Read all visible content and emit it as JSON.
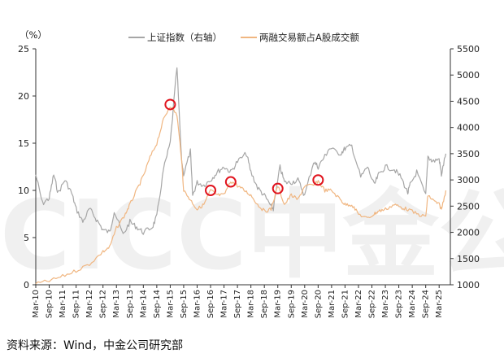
{
  "chart_data": {
    "type": "line",
    "title": "",
    "left_axis": {
      "unit_label": "（%）",
      "range": [
        0,
        25
      ],
      "ticks": [
        0,
        5,
        10,
        15,
        20,
        25
      ]
    },
    "right_axis": {
      "range": [
        1000,
        5500
      ],
      "ticks": [
        1000,
        1500,
        2000,
        2500,
        3000,
        3500,
        4000,
        4500,
        5000,
        5500
      ]
    },
    "x_tick_labels": [
      "Mar-10",
      "Sep-10",
      "Mar-11",
      "Sep-11",
      "Mar-12",
      "Sep-12",
      "Mar-13",
      "Sep-13",
      "Mar-14",
      "Sep-14",
      "Mar-15",
      "Sep-15",
      "Mar-16",
      "Sep-16",
      "Mar-17",
      "Sep-17",
      "Mar-18",
      "Sep-18",
      "Mar-19",
      "Sep-19",
      "Mar-20",
      "Sep-20",
      "Mar-21",
      "Sep-21",
      "Mar-22",
      "Sep-22",
      "Mar-23",
      "Sep-23",
      "Mar-24",
      "Sep-24",
      "Mar-25"
    ],
    "legend_position": "top-center",
    "series": [
      {
        "name": "上证指数（右轴）",
        "axis": "right",
        "color": "#a6a6a6",
        "points": [
          [
            "Mar-10",
            3100
          ],
          [
            "Jun-10",
            2550
          ],
          [
            "Sep-10",
            2650
          ],
          [
            "Nov-10",
            3100
          ],
          [
            "Jan-11",
            2750
          ],
          [
            "Apr-11",
            3000
          ],
          [
            "Jul-11",
            2750
          ],
          [
            "Sep-11",
            2450
          ],
          [
            "Dec-11",
            2200
          ],
          [
            "Mar-12",
            2450
          ],
          [
            "Jun-12",
            2250
          ],
          [
            "Sep-12",
            2050
          ],
          [
            "Dec-12",
            2000
          ],
          [
            "Feb-13",
            2400
          ],
          [
            "Jun-13",
            1950
          ],
          [
            "Sep-13",
            2200
          ],
          [
            "Dec-13",
            2100
          ],
          [
            "Mar-14",
            2000
          ],
          [
            "Jul-14",
            2100
          ],
          [
            "Sep-14",
            2300
          ],
          [
            "Dec-14",
            3200
          ],
          [
            "Mar-15",
            3700
          ],
          [
            "Jun-15",
            5150
          ],
          [
            "Aug-15",
            3400
          ],
          [
            "Sep-15",
            3100
          ],
          [
            "Dec-15",
            3550
          ],
          [
            "Jan-16",
            2700
          ],
          [
            "Mar-16",
            2950
          ],
          [
            "Jun-16",
            2900
          ],
          [
            "Sep-16",
            3000
          ],
          [
            "Dec-16",
            3150
          ],
          [
            "Mar-17",
            3250
          ],
          [
            "Jun-17",
            3150
          ],
          [
            "Sep-17",
            3350
          ],
          [
            "Jan-18",
            3500
          ],
          [
            "Mar-18",
            3150
          ],
          [
            "Jun-18",
            2850
          ],
          [
            "Sep-18",
            2700
          ],
          [
            "Dec-18",
            2500
          ],
          [
            "Jan-19",
            2450
          ],
          [
            "Apr-19",
            3250
          ],
          [
            "Jun-19",
            2950
          ],
          [
            "Sep-19",
            2950
          ],
          [
            "Dec-19",
            3000
          ],
          [
            "Mar-20",
            2700
          ],
          [
            "Jul-20",
            3350
          ],
          [
            "Sep-20",
            3250
          ],
          [
            "Dec-20",
            3450
          ],
          [
            "Feb-21",
            3600
          ],
          [
            "Jul-21",
            3500
          ],
          [
            "Sep-21",
            3600
          ],
          [
            "Dec-21",
            3650
          ],
          [
            "Apr-22",
            3050
          ],
          [
            "Jul-22",
            3250
          ],
          [
            "Oct-22",
            2900
          ],
          [
            "Dec-22",
            3100
          ],
          [
            "Mar-23",
            3250
          ],
          [
            "Jul-23",
            3200
          ],
          [
            "Oct-23",
            3050
          ],
          [
            "Jan-24",
            2750
          ],
          [
            "Feb-24",
            2900
          ],
          [
            "May-24",
            3150
          ],
          [
            "Sep-24",
            2700
          ],
          [
            "Oct-24",
            3450
          ],
          [
            "Dec-24",
            3350
          ],
          [
            "Mar-25",
            3400
          ],
          [
            "Apr-25",
            3100
          ],
          [
            "Jun-25",
            3500
          ]
        ]
      },
      {
        "name": "两融交易额占A股成交额",
        "axis": "left",
        "color": "#f0b681",
        "points": [
          [
            "Mar-10",
            0.1
          ],
          [
            "Sep-10",
            0.4
          ],
          [
            "Mar-11",
            0.9
          ],
          [
            "Sep-11",
            1.5
          ],
          [
            "Mar-12",
            2.2
          ],
          [
            "Sep-12",
            3.5
          ],
          [
            "Dec-12",
            4.0
          ],
          [
            "Mar-13",
            6.0
          ],
          [
            "Jul-13",
            7.5
          ],
          [
            "Sep-13",
            8.5
          ],
          [
            "Dec-13",
            10.0
          ],
          [
            "Mar-14",
            11.5
          ],
          [
            "Jun-14",
            13.5
          ],
          [
            "Sep-14",
            15.0
          ],
          [
            "Dec-14",
            17.5
          ],
          [
            "Mar-15",
            19.0
          ],
          [
            "Jun-15",
            18.0
          ],
          [
            "Aug-15",
            13.5
          ],
          [
            "Sep-15",
            10.0
          ],
          [
            "Dec-15",
            9.0
          ],
          [
            "Mar-16",
            8.0
          ],
          [
            "Jun-16",
            8.5
          ],
          [
            "Sep-16",
            10.0
          ],
          [
            "Dec-16",
            9.5
          ],
          [
            "Mar-17",
            9.5
          ],
          [
            "Jun-17",
            11.0
          ],
          [
            "Sep-17",
            10.5
          ],
          [
            "Dec-17",
            10.0
          ],
          [
            "Mar-18",
            9.5
          ],
          [
            "Jun-18",
            8.5
          ],
          [
            "Sep-18",
            7.8
          ],
          [
            "Dec-18",
            8.0
          ],
          [
            "Mar-19",
            10.5
          ],
          [
            "Jun-19",
            8.5
          ],
          [
            "Sep-19",
            9.5
          ],
          [
            "Dec-19",
            9.0
          ],
          [
            "Mar-20",
            10.5
          ],
          [
            "Jul-20",
            10.5
          ],
          [
            "Sep-20",
            11.0
          ],
          [
            "Dec-20",
            10.0
          ],
          [
            "Mar-21",
            10.0
          ],
          [
            "Jul-21",
            9.0
          ],
          [
            "Sep-21",
            8.5
          ],
          [
            "Dec-21",
            8.5
          ],
          [
            "Mar-22",
            7.5
          ],
          [
            "Jul-22",
            7.0
          ],
          [
            "Oct-22",
            7.5
          ],
          [
            "Dec-22",
            7.8
          ],
          [
            "Mar-23",
            8.0
          ],
          [
            "Jul-23",
            8.5
          ],
          [
            "Oct-23",
            8.2
          ],
          [
            "Jan-24",
            8.0
          ],
          [
            "May-24",
            7.5
          ],
          [
            "Sep-24",
            7.2
          ],
          [
            "Oct-24",
            9.5
          ],
          [
            "Dec-24",
            9.0
          ],
          [
            "Mar-25",
            8.5
          ],
          [
            "Apr-25",
            8.0
          ],
          [
            "Jun-25",
            10.0
          ]
        ]
      }
    ],
    "highlight_markers": [
      {
        "x": "Mar-15",
        "y": 19.1,
        "axis": "left"
      },
      {
        "x": "Sep-16",
        "y": 10.0,
        "axis": "left"
      },
      {
        "x": "Jun-17",
        "y": 10.9,
        "axis": "left"
      },
      {
        "x": "Mar-19",
        "y": 10.2,
        "axis": "left"
      },
      {
        "x": "Sep-20",
        "y": 11.1,
        "axis": "left"
      }
    ],
    "marker_color": "#e0141e"
  },
  "watermark": {
    "text": "CICC中金公司",
    "color": "#f0f0f0"
  },
  "source": "资料来源：Wind，中金公司研究部"
}
